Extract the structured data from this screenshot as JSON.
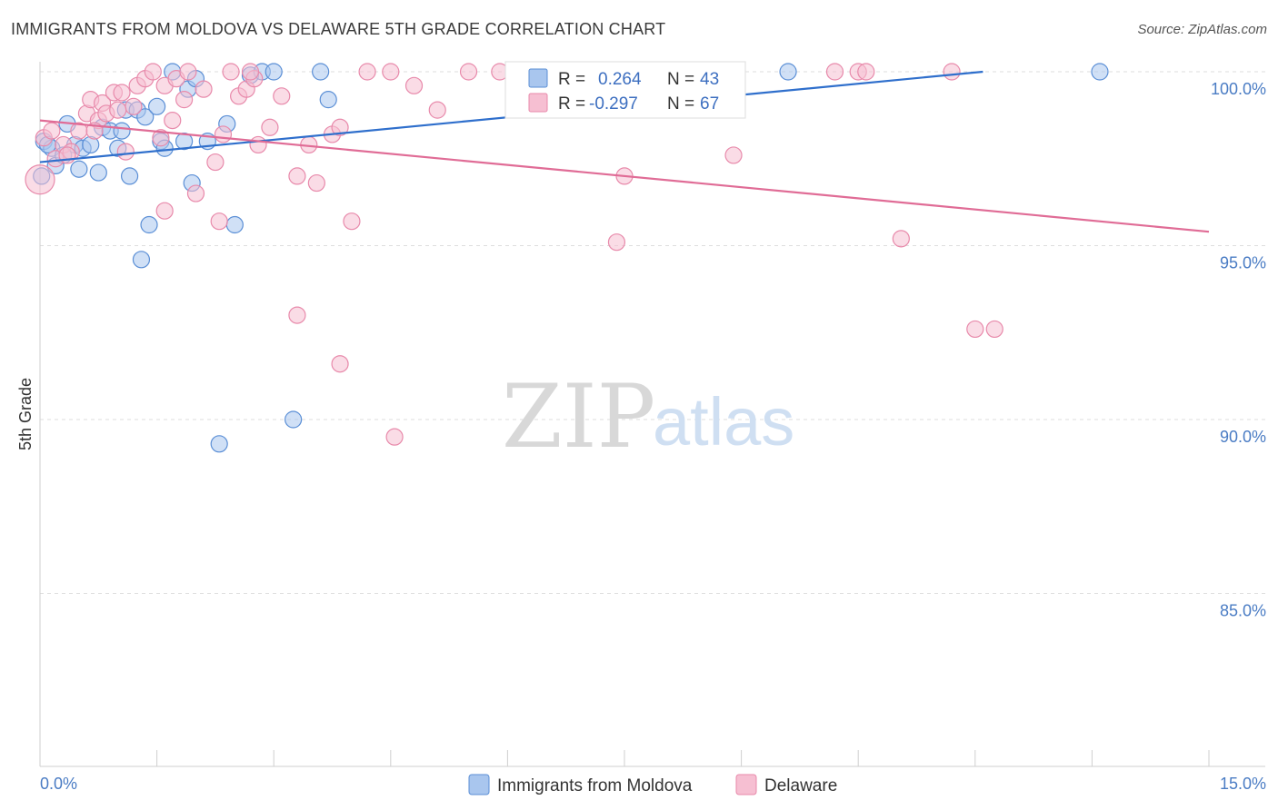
{
  "title": "IMMIGRANTS FROM MOLDOVA VS DELAWARE 5TH GRADE CORRELATION CHART",
  "source": "Source: ZipAtlas.com",
  "watermark": {
    "zip": "ZIP",
    "atlas": "atlas"
  },
  "colors": {
    "blue_fill": "#a9c6ee",
    "blue_stroke": "#5b8fd6",
    "blue_line": "#2f6fcc",
    "pink_fill": "#f6bfd2",
    "pink_stroke": "#e88aab",
    "pink_line": "#e06c96",
    "grid": "#dedede",
    "tick_label": "#4a7cc4"
  },
  "legend": {
    "series1": {
      "r_label": "R =",
      "r_value": "0.264",
      "n_label": "N =",
      "n_value": "43"
    },
    "series2": {
      "r_label": "R =",
      "r_value": "-0.297",
      "n_label": "N =",
      "n_value": "67"
    }
  },
  "chart_data": {
    "type": "scatter",
    "title": "IMMIGRANTS FROM MOLDOVA VS DELAWARE 5TH GRADE CORRELATION CHART",
    "xlabel": "",
    "ylabel": "5th Grade",
    "xlim": [
      0,
      15
    ],
    "ylim": [
      80.5,
      100.8
    ],
    "x_ticks": [
      {
        "value": 0,
        "label": "0.0%"
      },
      {
        "value": 15,
        "label": "15.0%"
      }
    ],
    "y_ticks": [
      {
        "value": 100,
        "label": "100.0%"
      },
      {
        "value": 95,
        "label": "95.0%"
      },
      {
        "value": 90,
        "label": "90.0%"
      },
      {
        "value": 85,
        "label": "85.0%"
      }
    ],
    "grid": true,
    "legend_position": "top-center",
    "series": [
      {
        "name": "Immigrants from Moldova",
        "color": "#a9c6ee",
        "trend": {
          "x": [
            0,
            12.1
          ],
          "y": [
            97.4,
            100.0
          ]
        },
        "points": [
          [
            0.05,
            98.0
          ],
          [
            0.15,
            97.8
          ],
          [
            0.2,
            97.3
          ],
          [
            0.35,
            98.5
          ],
          [
            0.45,
            97.9
          ],
          [
            0.55,
            97.8
          ],
          [
            0.5,
            97.2
          ],
          [
            0.75,
            97.1
          ],
          [
            0.8,
            98.4
          ],
          [
            0.9,
            98.3
          ],
          [
            1.0,
            97.8
          ],
          [
            1.1,
            98.9
          ],
          [
            1.15,
            97.0
          ],
          [
            1.25,
            98.9
          ],
          [
            1.35,
            98.7
          ],
          [
            1.5,
            99.0
          ],
          [
            1.55,
            98.0
          ],
          [
            1.6,
            97.8
          ],
          [
            1.7,
            100.0
          ],
          [
            1.85,
            98.0
          ],
          [
            1.9,
            99.5
          ],
          [
            1.95,
            96.8
          ],
          [
            2.0,
            99.8
          ],
          [
            2.15,
            98.0
          ],
          [
            2.4,
            98.5
          ],
          [
            2.5,
            95.6
          ],
          [
            2.7,
            99.9
          ],
          [
            2.85,
            100.0
          ],
          [
            3.0,
            100.0
          ],
          [
            3.6,
            100.0
          ],
          [
            3.7,
            99.2
          ],
          [
            1.4,
            95.6
          ],
          [
            1.3,
            94.6
          ],
          [
            2.3,
            89.3
          ],
          [
            3.25,
            90.0
          ],
          [
            8.0,
            100.0
          ],
          [
            9.6,
            100.0
          ],
          [
            13.6,
            100.0
          ],
          [
            0.1,
            97.9
          ],
          [
            0.65,
            97.9
          ],
          [
            0.3,
            97.6
          ],
          [
            1.05,
            98.3
          ],
          [
            0.02,
            97.0
          ]
        ]
      },
      {
        "name": "Delaware",
        "color": "#f6bfd2",
        "trend": {
          "x": [
            0,
            15
          ],
          "y": [
            98.6,
            95.4
          ]
        },
        "points": [
          [
            0.05,
            98.1
          ],
          [
            0.2,
            97.5
          ],
          [
            0.3,
            97.9
          ],
          [
            0.4,
            97.7
          ],
          [
            0.5,
            98.3
          ],
          [
            0.6,
            98.8
          ],
          [
            0.65,
            99.2
          ],
          [
            0.75,
            98.6
          ],
          [
            0.8,
            99.1
          ],
          [
            0.85,
            98.8
          ],
          [
            0.95,
            99.4
          ],
          [
            1.05,
            99.4
          ],
          [
            1.1,
            97.7
          ],
          [
            1.2,
            99.0
          ],
          [
            1.25,
            99.6
          ],
          [
            1.35,
            99.8
          ],
          [
            1.45,
            100.0
          ],
          [
            1.55,
            98.1
          ],
          [
            1.6,
            99.6
          ],
          [
            1.7,
            98.6
          ],
          [
            1.75,
            99.8
          ],
          [
            1.85,
            99.2
          ],
          [
            1.9,
            100.0
          ],
          [
            2.0,
            96.5
          ],
          [
            2.1,
            99.5
          ],
          [
            2.25,
            97.4
          ],
          [
            2.3,
            95.7
          ],
          [
            2.35,
            98.2
          ],
          [
            2.45,
            100.0
          ],
          [
            2.55,
            99.3
          ],
          [
            2.65,
            99.5
          ],
          [
            2.75,
            99.8
          ],
          [
            2.8,
            97.9
          ],
          [
            2.95,
            98.4
          ],
          [
            3.1,
            99.3
          ],
          [
            3.3,
            97.0
          ],
          [
            3.45,
            97.9
          ],
          [
            3.55,
            96.8
          ],
          [
            3.75,
            98.2
          ],
          [
            3.85,
            98.4
          ],
          [
            4.0,
            95.7
          ],
          [
            4.2,
            100.0
          ],
          [
            4.5,
            100.0
          ],
          [
            4.8,
            99.6
          ],
          [
            5.1,
            98.9
          ],
          [
            5.5,
            100.0
          ],
          [
            5.9,
            100.0
          ],
          [
            1.6,
            96.0
          ],
          [
            3.3,
            93.0
          ],
          [
            3.85,
            91.6
          ],
          [
            4.55,
            89.5
          ],
          [
            7.4,
            95.1
          ],
          [
            7.5,
            97.0
          ],
          [
            8.9,
            97.6
          ],
          [
            10.2,
            100.0
          ],
          [
            10.5,
            100.0
          ],
          [
            10.6,
            100.0
          ],
          [
            11.05,
            95.2
          ],
          [
            11.7,
            100.0
          ],
          [
            12.0,
            92.6
          ],
          [
            12.25,
            92.6
          ],
          [
            0.0,
            96.9
          ],
          [
            0.15,
            98.3
          ],
          [
            0.35,
            97.6
          ],
          [
            0.7,
            98.3
          ],
          [
            1.0,
            98.9
          ],
          [
            2.7,
            100.0
          ]
        ]
      }
    ]
  }
}
